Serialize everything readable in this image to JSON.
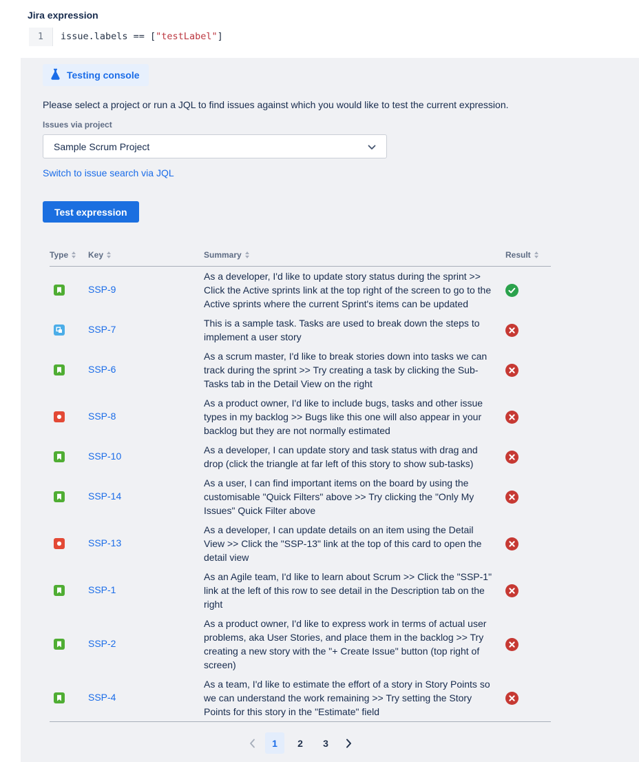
{
  "header": {
    "title": "Jira expression"
  },
  "code": {
    "line_number": "1",
    "pre": "issue.labels == [",
    "string": "\"testLabel\"",
    "post": "]"
  },
  "console": {
    "chip_label": "Testing console",
    "description": "Please select a project or run a JQL to find issues against which you would like to test the current expression.",
    "project_label": "Issues via project",
    "project_value": "Sample Scrum Project",
    "switch_link": "Switch to issue search via JQL",
    "test_button": "Test expression"
  },
  "table": {
    "headers": [
      {
        "label": "Type"
      },
      {
        "label": "Key"
      },
      {
        "label": "Summary"
      },
      {
        "label": "Result"
      }
    ],
    "rows": [
      {
        "type": "story",
        "key": "SSP-9",
        "summary": "As a developer, I'd like to update story status during the sprint >> Click the Active sprints link at the top right of the screen to go to the Active sprints where the current Sprint's items can be updated",
        "result": "pass"
      },
      {
        "type": "subtask",
        "key": "SSP-7",
        "summary": "This is a sample task. Tasks are used to break down the steps to implement a user story",
        "result": "fail"
      },
      {
        "type": "story",
        "key": "SSP-6",
        "summary": "As a scrum master, I'd like to break stories down into tasks we can track during the sprint >> Try creating a task by clicking the Sub-Tasks tab in the Detail View on the right",
        "result": "fail"
      },
      {
        "type": "bug",
        "key": "SSP-8",
        "summary": "As a product owner, I'd like to include bugs, tasks and other issue types in my backlog >> Bugs like this one will also appear in your backlog but they are not normally estimated",
        "result": "fail"
      },
      {
        "type": "story",
        "key": "SSP-10",
        "summary": "As a developer, I can update story and task status with drag and drop (click the triangle at far left of this story to show sub-tasks)",
        "result": "fail"
      },
      {
        "type": "story",
        "key": "SSP-14",
        "summary": "As a user, I can find important items on the board by using the customisable \"Quick Filters\" above >> Try clicking the \"Only My Issues\" Quick Filter above",
        "result": "fail"
      },
      {
        "type": "bug",
        "key": "SSP-13",
        "summary": "As a developer, I can update details on an item using the Detail View >> Click the \"SSP-13\" link at the top of this card to open the detail view",
        "result": "fail"
      },
      {
        "type": "story",
        "key": "SSP-1",
        "summary": "As an Agile team, I'd like to learn about Scrum >> Click the \"SSP-1\" link at the left of this row to see detail in the Description tab on the right",
        "result": "fail"
      },
      {
        "type": "story",
        "key": "SSP-2",
        "summary": "As a product owner, I'd like to express work in terms of actual user problems, aka User Stories, and place them in the backlog >> Try creating a new story with the \"+ Create Issue\" button (top right of screen)",
        "result": "fail"
      },
      {
        "type": "story",
        "key": "SSP-4",
        "summary": "As a team, I'd like to estimate the effort of a story in Story Points so we can understand the work remaining >> Try setting the Story Points for this story in the \"Estimate\" field",
        "result": "fail"
      }
    ]
  },
  "pagination": {
    "pages": [
      "1",
      "2",
      "3"
    ],
    "active_page": "1"
  },
  "colors": {
    "accent_blue": "#1a6ce8",
    "button_blue": "#1b6fe0",
    "chip_bg": "#e7f0fd",
    "panel_bg": "#f0f1f4",
    "text_dark": "#172b4d",
    "text_gray": "#5e6c84",
    "code_string_red": "#bb363f",
    "story_green": "#4fad33",
    "subtask_blue": "#4bade8",
    "bug_red": "#e34935",
    "result_pass_green": "#2ba24c",
    "result_fail_red": "#c63933"
  }
}
